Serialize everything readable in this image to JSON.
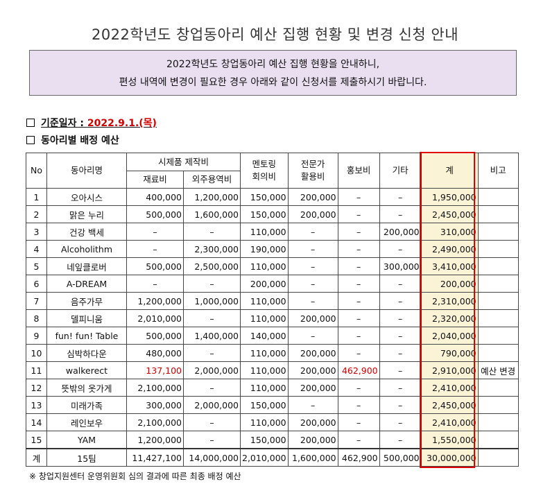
{
  "title": "2022학년도 창업동아리 예산 집행 현황 및 변경 신청 안내",
  "notice": {
    "line1": "2022학년도 창업동아리 예산 집행 현황을 안내하니,",
    "line2": "편성 내역에 변경이 필요한 경우 아래와 같이 신청서를 제출하시기 바랍니다."
  },
  "date_heading": {
    "label": "기준일자 : ",
    "value": "2022.9.1.(목)"
  },
  "table_heading": "동아리별 배정 예산",
  "table": {
    "headers": {
      "no": "No",
      "club": "동아리명",
      "production": "시제품 제작비",
      "material": "재료비",
      "outsourcing": "외주용역비",
      "mentoring": "멘토링\n회의비",
      "expert": "전문가\n활용비",
      "promo": "홍보비",
      "etc": "기타",
      "total": "계",
      "note": "비고"
    },
    "rows": [
      {
        "no": "1",
        "club": "오아시스",
        "material": "400,000",
        "outsourcing": "1,200,000",
        "mentoring": "150,000",
        "expert": "200,000",
        "promo": "–",
        "etc": "–",
        "total": "1,950,000",
        "note": ""
      },
      {
        "no": "2",
        "club": "맑은 누리",
        "material": "500,000",
        "outsourcing": "1,600,000",
        "mentoring": "150,000",
        "expert": "200,000",
        "promo": "–",
        "etc": "–",
        "total": "2,450,000",
        "note": ""
      },
      {
        "no": "3",
        "club": "건강 백세",
        "material": "–",
        "outsourcing": "–",
        "mentoring": "110,000",
        "expert": "–",
        "promo": "–",
        "etc": "200,000",
        "total": "310,000",
        "note": ""
      },
      {
        "no": "4",
        "club": "Alcoholithm",
        "material": "–",
        "outsourcing": "2,300,000",
        "mentoring": "190,000",
        "expert": "–",
        "promo": "–",
        "etc": "–",
        "total": "2,490,000",
        "note": ""
      },
      {
        "no": "5",
        "club": "네잎클로버",
        "material": "500,000",
        "outsourcing": "2,500,000",
        "mentoring": "110,000",
        "expert": "–",
        "promo": "–",
        "etc": "300,000",
        "total": "3,410,000",
        "note": ""
      },
      {
        "no": "6",
        "club": "A-DREAM",
        "material": "–",
        "outsourcing": "–",
        "mentoring": "200,000",
        "expert": "–",
        "promo": "–",
        "etc": "–",
        "total": "200,000",
        "note": ""
      },
      {
        "no": "7",
        "club": "음주가무",
        "material": "1,200,000",
        "outsourcing": "1,000,000",
        "mentoring": "110,000",
        "expert": "–",
        "promo": "–",
        "etc": "–",
        "total": "2,310,000",
        "note": ""
      },
      {
        "no": "8",
        "club": "델피니움",
        "material": "2,010,000",
        "outsourcing": "–",
        "mentoring": "110,000",
        "expert": "200,000",
        "promo": "–",
        "etc": "–",
        "total": "2,320,000",
        "note": ""
      },
      {
        "no": "9",
        "club": "fun! fun! Table",
        "material": "500,000",
        "outsourcing": "1,400,000",
        "mentoring": "140,000",
        "expert": "–",
        "promo": "–",
        "etc": "–",
        "total": "2,040,000",
        "note": ""
      },
      {
        "no": "10",
        "club": "심박하다운",
        "material": "480,000",
        "outsourcing": "–",
        "mentoring": "110,000",
        "expert": "200,000",
        "promo": "–",
        "etc": "–",
        "total": "790,000",
        "note": ""
      },
      {
        "no": "11",
        "club": "walkerect",
        "material": "137,100",
        "outsourcing": "2,000,000",
        "mentoring": "110,000",
        "expert": "200,000",
        "promo": "462,900",
        "etc": "–",
        "total": "2,910,000",
        "note": "예산 변경"
      },
      {
        "no": "12",
        "club": "뜻밖의 옷가게",
        "material": "2,100,000",
        "outsourcing": "–",
        "mentoring": "110,000",
        "expert": "200,000",
        "promo": "–",
        "etc": "–",
        "total": "2,410,000",
        "note": ""
      },
      {
        "no": "13",
        "club": "미래가족",
        "material": "300,000",
        "outsourcing": "2,000,000",
        "mentoring": "150,000",
        "expert": "–",
        "promo": "–",
        "etc": "–",
        "total": "2,450,000",
        "note": ""
      },
      {
        "no": "14",
        "club": "레인보우",
        "material": "2,100,000",
        "outsourcing": "–",
        "mentoring": "110,000",
        "expert": "200,000",
        "promo": "–",
        "etc": "–",
        "total": "2,410,000",
        "note": ""
      },
      {
        "no": "15",
        "club": "YAM",
        "material": "1,200,000",
        "outsourcing": "–",
        "mentoring": "150,000",
        "expert": "200,000",
        "promo": "–",
        "etc": "–",
        "total": "1,550,000",
        "note": ""
      }
    ],
    "sum": {
      "no": "계",
      "club": "15팀",
      "material": "11,427,100",
      "outsourcing": "14,000,000",
      "mentoring": "2,010,000",
      "expert": "1,600,000",
      "promo": "462,900",
      "etc": "500,000",
      "total": "30,000,000",
      "note": ""
    }
  },
  "footnote": "※ 창업지원센터 운영위원회 심의 결과에 따른 최종 배정 예산",
  "colors": {
    "notice_bg": "#e9dff0",
    "highlight": "#e00000",
    "changed_value": "#d00000",
    "total_col_bg": "#faf3d6"
  }
}
